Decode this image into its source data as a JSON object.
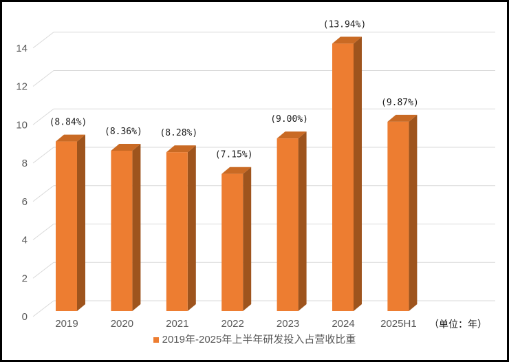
{
  "chart_data": {
    "type": "bar",
    "style": "3d",
    "categories": [
      "2019",
      "2020",
      "2021",
      "2022",
      "2023",
      "2024",
      "2025H1"
    ],
    "values": [
      8.84,
      8.36,
      8.28,
      7.15,
      9.0,
      13.94,
      9.87
    ],
    "value_labels": [
      "(8.84%)",
      "(8.36%)",
      "(8.28%)",
      "(7.15%)",
      "(9.00%)",
      "(13.94%)",
      "(9.87%)"
    ],
    "y_ticks": [
      0,
      2,
      4,
      6,
      8,
      10,
      12,
      14
    ],
    "ylim": [
      0,
      14
    ],
    "grid": true,
    "legend": "2019年-2025年上半年研发投入占营收比重",
    "legend_position": "bottom",
    "unit_label": "（单位：年）",
    "xlabel": "",
    "ylabel": "",
    "colors": {
      "bar_front": "#ED7D31",
      "bar_side": "#9E541D",
      "bar_top": "#C96A24",
      "gridline": "#D9D9D9",
      "axis_text": "#595959",
      "value_label_text": "#1A1A1A",
      "frame_border": "#000000",
      "background": "#FFFFFF"
    }
  }
}
